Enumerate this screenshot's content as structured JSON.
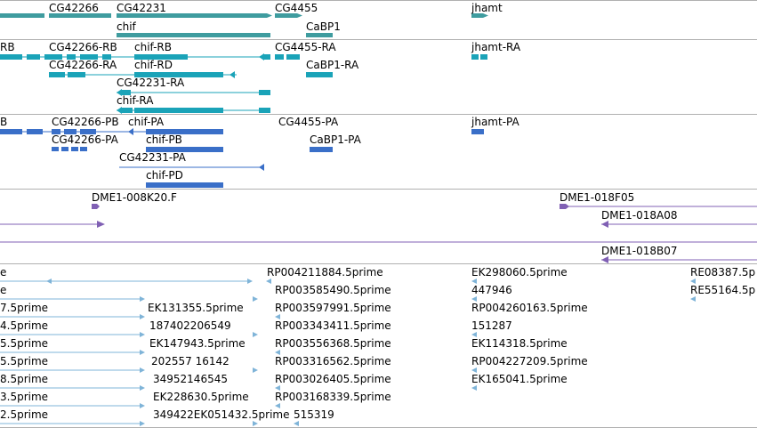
{
  "colors": {
    "gene": "#3f9c9f",
    "transcript": "#1aa3b8",
    "cds": "#3a6fc8",
    "clone": "#8060b4",
    "est": "#7fb4d8",
    "divider": "#b0b0b0"
  },
  "tracks": {
    "genes": {
      "labels": [
        "CG42266",
        "CG42231",
        "chif",
        "CG4455",
        "CaBP1",
        "jhamt"
      ]
    },
    "transcripts": {
      "labels": [
        "RB",
        "CG42266-RB",
        "chif-RB",
        "CG4455-RA",
        "jhamt-RA",
        "CG42266-RA",
        "chif-RD",
        "CaBP1-RA",
        "CG42231-RA",
        "chif-RA"
      ]
    },
    "cds": {
      "labels": [
        "B",
        "CG42266-PB",
        "chif-PA",
        "CG4455-PA",
        "jhamt-PA",
        "CG42266-PA",
        "chif-PB",
        "CaBP1-PA",
        "CG42231-PA",
        "chif-PD"
      ]
    },
    "clones": {
      "labels": [
        "DME1-008K20.F",
        "DME1-018F05",
        "DME1-018A08",
        "DME1-018B07"
      ]
    },
    "ests": {
      "labels": [
        "e",
        "RP004211884.5prime",
        "EK298060.5prime",
        "RE08387.5p",
        "e",
        "RP003585490.5prime",
        "447946",
        "RE55164.5p",
        "7.5prime",
        "EK131355.5prime",
        "RP003597991.5prime",
        "RP004260163.5prime",
        "4.5prime",
        "187402206549",
        "RP003343411.5prime",
        "151287",
        "5.5prime",
        "EK147943.5prime",
        "RP003556368.5prime",
        "EK114318.5prime",
        "5.5prime",
        "202557 16142",
        "RP003316562.5prime",
        "RP004227209.5prime",
        "8.5prime",
        "34952146545",
        "RP003026405.5prime",
        "EK165041.5prime",
        "3.5prime",
        "EK228630.5prime",
        "RP003168339.5prime",
        "2.5prime",
        "349422EK051432.5prime",
        "515319"
      ]
    }
  }
}
